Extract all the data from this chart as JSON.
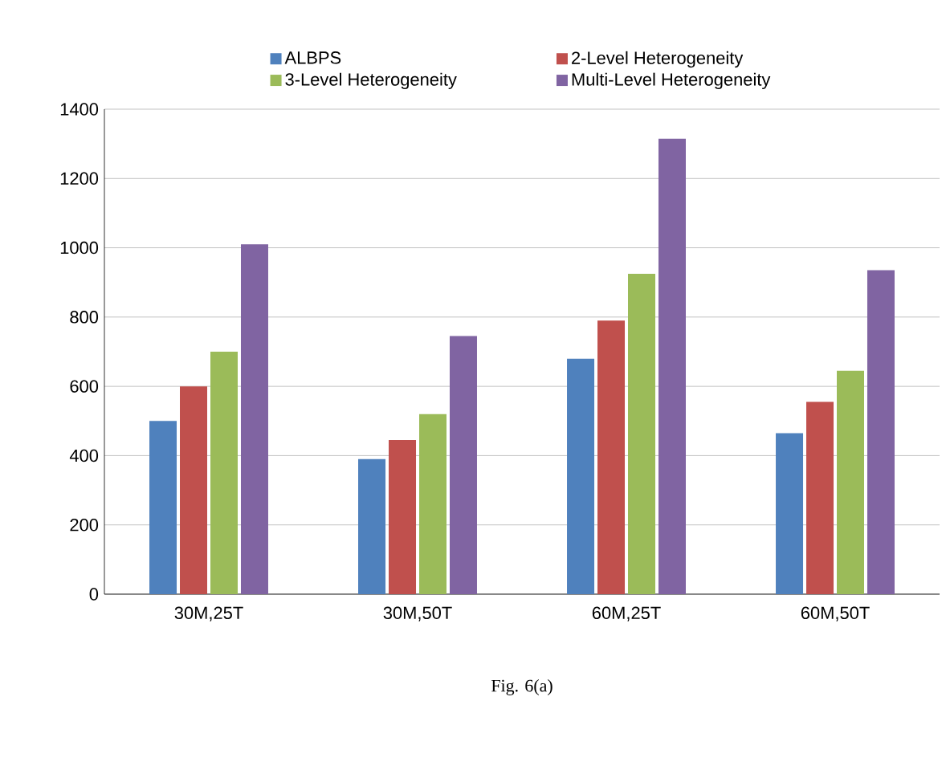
{
  "chart_data": {
    "type": "bar",
    "categories": [
      "30M,25T",
      "30M,50T",
      "60M,25T",
      "60M,50T"
    ],
    "series": [
      {
        "name": "ALBPS",
        "color": "#4f81bd",
        "values": [
          500,
          390,
          680,
          465
        ]
      },
      {
        "name": "2-Level Heterogeneity",
        "color": "#c0504d",
        "values": [
          600,
          445,
          790,
          555
        ]
      },
      {
        "name": "3-Level Heterogeneity",
        "color": "#9bbb59",
        "values": [
          700,
          520,
          925,
          645
        ]
      },
      {
        "name": "Multi-Level Heterogeneity",
        "color": "#8064a2",
        "values": [
          1010,
          745,
          1315,
          935
        ]
      }
    ],
    "ylim": [
      0,
      1400
    ],
    "yticks": [
      0,
      200,
      400,
      600,
      800,
      1000,
      1200,
      1400
    ],
    "grid": "y",
    "legend": "top",
    "annotations": [
      "Fig. 6(a)"
    ]
  }
}
